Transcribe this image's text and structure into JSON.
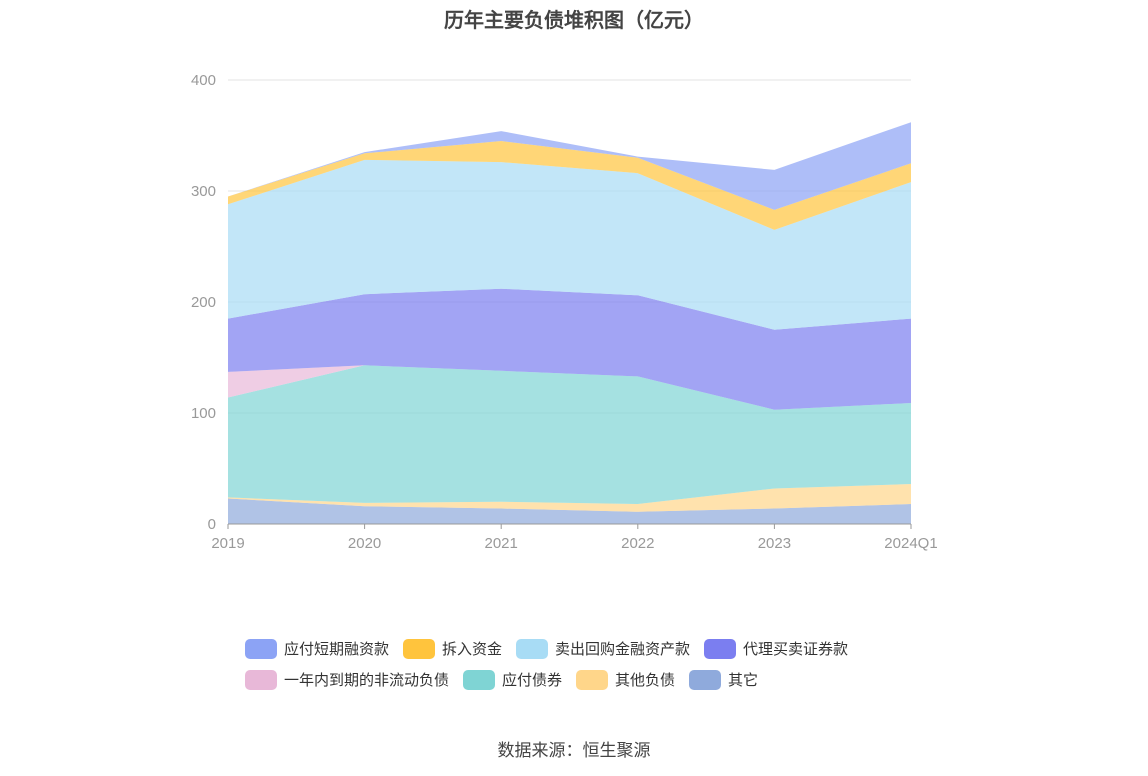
{
  "chart_data": {
    "type": "area",
    "stacked": true,
    "title": "历年主要负债堆积图（亿元）",
    "x": [
      "2019",
      "2020",
      "2021",
      "2022",
      "2023",
      "2024Q1"
    ],
    "ylim": [
      0,
      400
    ],
    "yticks": [
      "0",
      "100",
      "200",
      "300",
      "400"
    ],
    "grid": true,
    "legend_position": "bottom",
    "series": [
      {
        "name": "其它",
        "color": "#8faadc",
        "values": [
          23,
          16,
          14,
          11,
          14,
          18
        ]
      },
      {
        "name": "其他负债",
        "color": "#ffd68a",
        "values": [
          1,
          3,
          6,
          7,
          18,
          18
        ]
      },
      {
        "name": "应付债券",
        "color": "#7fd4d4",
        "values": [
          90,
          124,
          118,
          115,
          71,
          73
        ]
      },
      {
        "name": "一年内到期的非流动负债",
        "color": "#e8b8d8",
        "values": [
          23,
          0,
          0,
          0,
          0,
          0
        ]
      },
      {
        "name": "代理买卖证券款",
        "color": "#7b7ef0",
        "values": [
          48,
          64,
          74,
          73,
          72,
          76
        ]
      },
      {
        "name": "卖出回购金融资产款",
        "color": "#a8dcf5",
        "values": [
          103,
          121,
          114,
          110,
          90,
          123
        ]
      },
      {
        "name": "拆入资金",
        "color": "#ffc43d",
        "values": [
          7,
          6,
          19,
          14,
          18,
          17
        ]
      },
      {
        "name": "应付短期融资款",
        "color": "#8ca3f5",
        "values": [
          0,
          1,
          9,
          1,
          36,
          37
        ]
      }
    ]
  },
  "legend": {
    "rows": [
      [
        {
          "label": "应付短期融资款",
          "color": "#8ca3f5"
        },
        {
          "label": "拆入资金",
          "color": "#ffc43d"
        },
        {
          "label": "卖出回购金融资产款",
          "color": "#a8dcf5"
        },
        {
          "label": "代理买卖证券款",
          "color": "#7b7ef0"
        }
      ],
      [
        {
          "label": "一年内到期的非流动负债",
          "color": "#e8b8d8"
        },
        {
          "label": "应付债券",
          "color": "#7fd4d4"
        },
        {
          "label": "其他负债",
          "color": "#ffd68a"
        },
        {
          "label": "其它",
          "color": "#8faadc"
        }
      ]
    ]
  },
  "source": "数据来源：恒生聚源"
}
